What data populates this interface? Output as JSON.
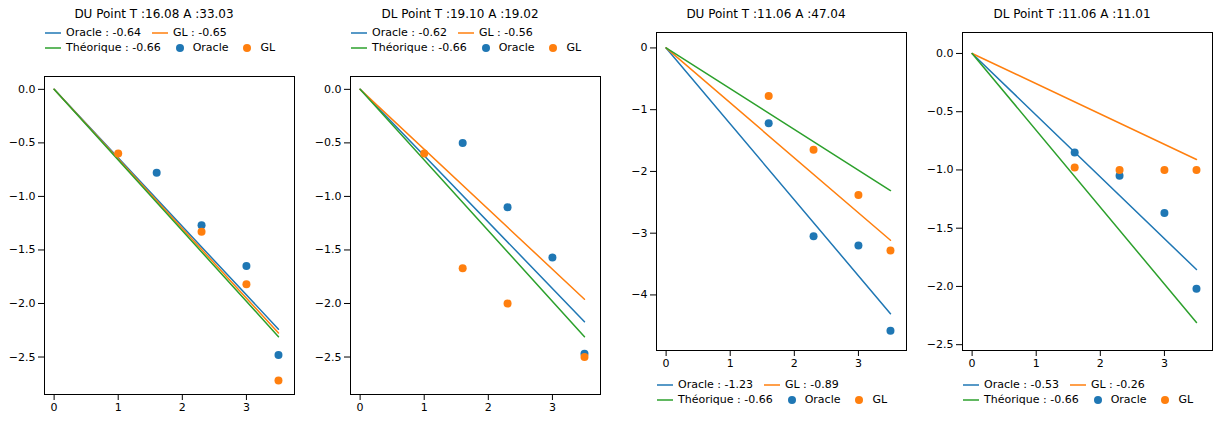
{
  "chart_data": [
    {
      "type": "line",
      "title": "DU Point T :16.08  A :33.03",
      "xlim": [
        -0.15,
        3.75
      ],
      "xticks": [
        0,
        1,
        2,
        3
      ],
      "ylim": [
        -2.85,
        0.12
      ],
      "yticks": [
        {
          "value": 0.0,
          "label": "0.0"
        },
        -0.5,
        {
          "value": -1.0,
          "label": "−1.0"
        },
        -1.5,
        {
          "value": -2.0,
          "label": "−2.0"
        },
        -2.5
      ],
      "legend": "upper left",
      "grid": false,
      "series": [
        {
          "name": "Oracle : -0.64",
          "type": "line",
          "color": "#1f77b4",
          "x": [
            0.0,
            3.5
          ],
          "values": [
            0,
            -2.24
          ]
        },
        {
          "name": "GL : -0.65",
          "type": "line",
          "color": "#ff7f0e",
          "x": [
            0.0,
            3.5
          ],
          "values": [
            0,
            -2.275
          ]
        },
        {
          "name": "Théorique : -0.66",
          "type": "line",
          "color": "#2ca02c",
          "x": [
            0.0,
            3.5
          ],
          "values": [
            0,
            -2.31
          ]
        },
        {
          "name": "Oracle",
          "type": "scatter",
          "color": "#1f77b4",
          "x": [
            1.6,
            2.3,
            3.0,
            3.5
          ],
          "values": [
            -0.78,
            -1.27,
            -1.65,
            -2.48
          ]
        },
        {
          "name": "GL",
          "type": "scatter",
          "color": "#ff7f0e",
          "x": [
            1.0,
            2.3,
            3.0,
            3.5
          ],
          "values": [
            -0.6,
            -1.33,
            -1.82,
            -2.72
          ]
        }
      ]
    },
    {
      "type": "line",
      "title": "DL Point T :19.10  A :19.02",
      "xlim": [
        -0.15,
        3.75
      ],
      "xticks": [
        0,
        1,
        2,
        3
      ],
      "ylim": [
        -2.85,
        0.12
      ],
      "yticks": [
        {
          "value": 0.0,
          "label": "0.0"
        },
        -0.5,
        {
          "value": -1.0,
          "label": "−1.0"
        },
        -1.5,
        {
          "value": -2.0,
          "label": "−2.0"
        },
        -2.5
      ],
      "legend": "upper left",
      "grid": false,
      "series": [
        {
          "name": "Oracle : -0.62",
          "type": "line",
          "color": "#1f77b4",
          "x": [
            0.0,
            3.5
          ],
          "values": [
            0,
            -2.17
          ]
        },
        {
          "name": "GL : -0.56",
          "type": "line",
          "color": "#ff7f0e",
          "x": [
            0.0,
            3.5
          ],
          "values": [
            0,
            -1.96
          ]
        },
        {
          "name": "Théorique : -0.66",
          "type": "line",
          "color": "#2ca02c",
          "x": [
            0.0,
            3.5
          ],
          "values": [
            0,
            -2.31
          ]
        },
        {
          "name": "Oracle",
          "type": "scatter",
          "color": "#1f77b4",
          "x": [
            1.6,
            2.3,
            3.0,
            3.5
          ],
          "values": [
            -0.5,
            -1.1,
            -1.57,
            -2.47
          ]
        },
        {
          "name": "GL",
          "type": "scatter",
          "color": "#ff7f0e",
          "x": [
            1.0,
            1.6,
            2.3,
            3.5
          ],
          "values": [
            -0.6,
            -1.67,
            -2.0,
            -2.5
          ]
        }
      ]
    },
    {
      "type": "line",
      "title": "DU Point T :11.06  A :47.04",
      "xlim": [
        -0.15,
        3.75
      ],
      "xticks": [
        0,
        1,
        2,
        3
      ],
      "ylim": [
        -4.9,
        0.25
      ],
      "yticks": [
        0,
        -1,
        -2,
        -3,
        -4
      ],
      "legend": "lower left",
      "grid": false,
      "series": [
        {
          "name": "Oracle : -1.23",
          "type": "line",
          "color": "#1f77b4",
          "x": [
            0.0,
            3.5
          ],
          "values": [
            0,
            -4.305
          ]
        },
        {
          "name": "GL : -0.89",
          "type": "line",
          "color": "#ff7f0e",
          "x": [
            0.0,
            3.5
          ],
          "values": [
            0,
            -3.115
          ]
        },
        {
          "name": "Théorique : -0.66",
          "type": "line",
          "color": "#2ca02c",
          "x": [
            0.0,
            3.5
          ],
          "values": [
            0,
            -2.31
          ]
        },
        {
          "name": "Oracle",
          "type": "scatter",
          "color": "#1f77b4",
          "x": [
            1.6,
            2.3,
            3.0,
            3.5
          ],
          "values": [
            -1.22,
            -3.05,
            -3.2,
            -4.58
          ]
        },
        {
          "name": "GL",
          "type": "scatter",
          "color": "#ff7f0e",
          "x": [
            1.6,
            2.3,
            3.0,
            3.5
          ],
          "values": [
            -0.78,
            -1.65,
            -2.38,
            -3.28
          ]
        }
      ]
    },
    {
      "type": "line",
      "title": "DL Point T :11.06  A :11.01",
      "xlim": [
        -0.15,
        3.75
      ],
      "xticks": [
        0,
        1,
        2,
        3
      ],
      "ylim": [
        -2.55,
        0.18
      ],
      "yticks": [
        {
          "value": 0,
          "label": "0.0"
        },
        -0.5,
        {
          "value": -1.0,
          "label": "−1.0"
        },
        -1.5,
        {
          "value": -2.0,
          "label": "−2.0"
        },
        -2.5
      ],
      "legend": "lower left",
      "grid": false,
      "series": [
        {
          "name": "Oracle : -0.53",
          "type": "line",
          "color": "#1f77b4",
          "x": [
            0.0,
            3.5
          ],
          "values": [
            0,
            -1.855
          ]
        },
        {
          "name": "GL : -0.26",
          "type": "line",
          "color": "#ff7f0e",
          "x": [
            0.0,
            3.5
          ],
          "values": [
            0,
            -0.91
          ]
        },
        {
          "name": "Théorique : -0.66",
          "type": "line",
          "color": "#2ca02c",
          "x": [
            0.0,
            3.5
          ],
          "values": [
            0,
            -2.31
          ]
        },
        {
          "name": "Oracle",
          "type": "scatter",
          "color": "#1f77b4",
          "x": [
            1.6,
            2.3,
            3.0,
            3.5
          ],
          "values": [
            -0.85,
            -1.05,
            -1.37,
            -2.02
          ]
        },
        {
          "name": "GL",
          "type": "scatter",
          "color": "#ff7f0e",
          "x": [
            1.6,
            2.3,
            3.0,
            3.5
          ],
          "values": [
            -0.98,
            -1.0,
            -1.0,
            -1.0
          ]
        }
      ]
    }
  ]
}
